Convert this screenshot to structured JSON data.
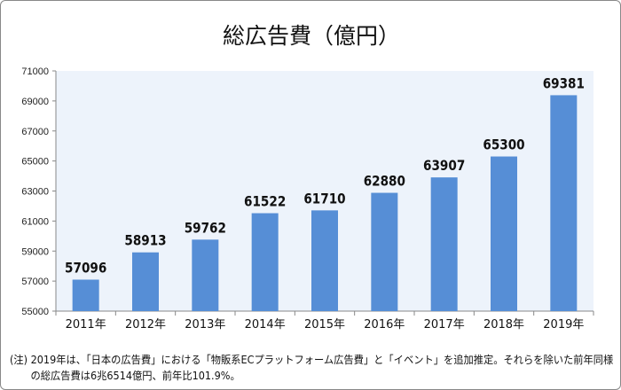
{
  "chart_data": {
    "type": "bar",
    "title": "総広告費（億円）",
    "categories": [
      "2011年",
      "2012年",
      "2013年",
      "2014年",
      "2015年",
      "2016年",
      "2017年",
      "2018年",
      "2019年"
    ],
    "values": [
      57096,
      58913,
      59762,
      61522,
      61710,
      62880,
      63907,
      65300,
      69381
    ],
    "ylim": [
      55000,
      71000
    ],
    "yticks": [
      55000,
      57000,
      59000,
      61000,
      63000,
      65000,
      67000,
      69000,
      71000
    ],
    "grid": false,
    "colors": {
      "bar": "#568ed6",
      "plot_background": "#edf3fb"
    }
  },
  "note": {
    "line1": "(注) 2019年は、「日本の広告費」における「物販系ECプラットフォーム広告費」と「イベント」を追加推定。それらを除いた前年同様",
    "line2": "の総広告費は6兆6514億円、前年比101.9%。"
  }
}
